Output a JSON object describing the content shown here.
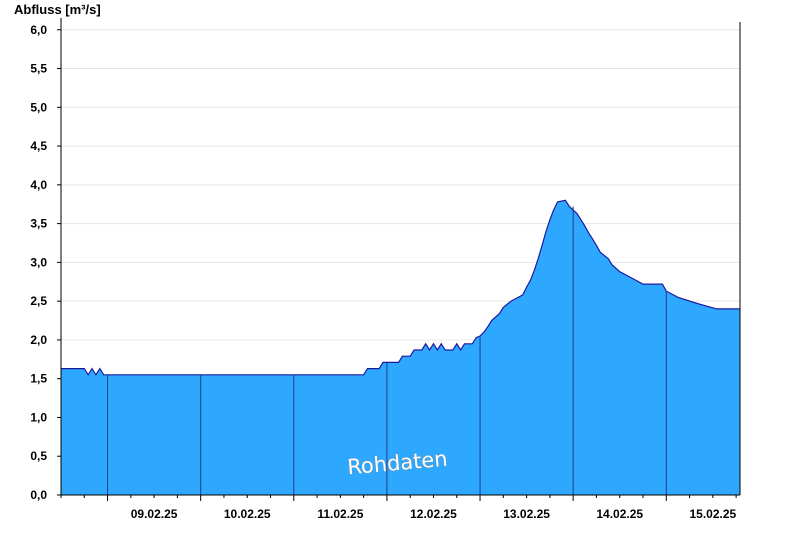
{
  "chart_data": {
    "type": "area",
    "ylabel": "Abfluss [m³/s]",
    "ylim": [
      0,
      6.1
    ],
    "yticks": [
      "0,0",
      "0,5",
      "1,0",
      "1,5",
      "2,0",
      "2,5",
      "3,0",
      "3,5",
      "4,0",
      "4,5",
      "5,0",
      "5,5",
      "6,0"
    ],
    "ytick_values": [
      0,
      0.5,
      1.0,
      1.5,
      2.0,
      2.5,
      3.0,
      3.5,
      4.0,
      4.5,
      5.0,
      5.5,
      6.0
    ],
    "x_start": "08.02.25 12:00",
    "x_end": "15.02.25 19:00",
    "xticks": [
      "09.02.25",
      "10.02.25",
      "11.02.25",
      "12.02.25",
      "13.02.25",
      "14.02.25",
      "15.02.25"
    ],
    "day_lines_at_midnight": [
      "09.02.25",
      "10.02.25",
      "11.02.25",
      "12.02.25",
      "13.02.25",
      "14.02.25",
      "15.02.25"
    ],
    "grid": "horizontal",
    "fill_color": "#2ea8ff",
    "line_color": "#1a1aa0",
    "watermark": "Rohdaten",
    "series": [
      {
        "points": [
          [
            "08.02.25 12:00",
            1.63
          ],
          [
            "08.02.25 18:00",
            1.63
          ],
          [
            "08.02.25 19:00",
            1.55
          ],
          [
            "08.02.25 20:00",
            1.63
          ],
          [
            "08.02.25 21:00",
            1.55
          ],
          [
            "08.02.25 22:00",
            1.63
          ],
          [
            "08.02.25 23:00",
            1.55
          ],
          [
            "09.02.25 00:00",
            1.55
          ],
          [
            "10.02.25 00:00",
            1.55
          ],
          [
            "11.02.25 00:00",
            1.55
          ],
          [
            "11.02.25 18:00",
            1.55
          ],
          [
            "11.02.25 19:00",
            1.63
          ],
          [
            "11.02.25 22:00",
            1.63
          ],
          [
            "11.02.25 23:00",
            1.71
          ],
          [
            "12.02.25 03:00",
            1.71
          ],
          [
            "12.02.25 04:00",
            1.79
          ],
          [
            "12.02.25 06:00",
            1.79
          ],
          [
            "12.02.25 07:00",
            1.87
          ],
          [
            "12.02.25 09:00",
            1.87
          ],
          [
            "12.02.25 10:00",
            1.95
          ],
          [
            "12.02.25 11:00",
            1.87
          ],
          [
            "12.02.25 12:00",
            1.95
          ],
          [
            "12.02.25 13:00",
            1.87
          ],
          [
            "12.02.25 14:00",
            1.95
          ],
          [
            "12.02.25 15:00",
            1.87
          ],
          [
            "12.02.25 17:00",
            1.87
          ],
          [
            "12.02.25 18:00",
            1.95
          ],
          [
            "12.02.25 19:00",
            1.87
          ],
          [
            "12.02.25 20:00",
            1.95
          ],
          [
            "12.02.25 22:00",
            1.95
          ],
          [
            "12.02.25 23:00",
            2.03
          ],
          [
            "13.02.25 00:00",
            2.05
          ],
          [
            "13.02.25 01:00",
            2.1
          ],
          [
            "13.02.25 02:00",
            2.17
          ],
          [
            "13.02.25 03:00",
            2.25
          ],
          [
            "13.02.25 05:00",
            2.34
          ],
          [
            "13.02.25 06:00",
            2.42
          ],
          [
            "13.02.25 08:00",
            2.5
          ],
          [
            "13.02.25 11:00",
            2.58
          ],
          [
            "13.02.25 12:00",
            2.68
          ],
          [
            "13.02.25 13:00",
            2.77
          ],
          [
            "13.02.25 14:00",
            2.9
          ],
          [
            "13.02.25 15:00",
            3.05
          ],
          [
            "13.02.25 16:00",
            3.22
          ],
          [
            "13.02.25 17:00",
            3.4
          ],
          [
            "13.02.25 18:00",
            3.55
          ],
          [
            "13.02.25 19:00",
            3.68
          ],
          [
            "13.02.25 20:00",
            3.78
          ],
          [
            "13.02.25 22:00",
            3.8
          ],
          [
            "13.02.25 23:00",
            3.72
          ],
          [
            "14.02.25 01:00",
            3.63
          ],
          [
            "14.02.25 02:00",
            3.55
          ],
          [
            "14.02.25 03:00",
            3.47
          ],
          [
            "14.02.25 04:00",
            3.38
          ],
          [
            "14.02.25 05:00",
            3.3
          ],
          [
            "14.02.25 06:00",
            3.22
          ],
          [
            "14.02.25 07:00",
            3.13
          ],
          [
            "14.02.25 09:00",
            3.05
          ],
          [
            "14.02.25 10:00",
            2.97
          ],
          [
            "14.02.25 12:00",
            2.88
          ],
          [
            "14.02.25 15:00",
            2.8
          ],
          [
            "14.02.25 18:00",
            2.72
          ],
          [
            "14.02.25 23:00",
            2.72
          ],
          [
            "15.02.25 00:00",
            2.63
          ],
          [
            "15.02.25 03:00",
            2.55
          ],
          [
            "15.02.25 08:00",
            2.47
          ],
          [
            "15.02.25 13:00",
            2.4
          ],
          [
            "15.02.25 19:00",
            2.4
          ]
        ]
      }
    ]
  }
}
